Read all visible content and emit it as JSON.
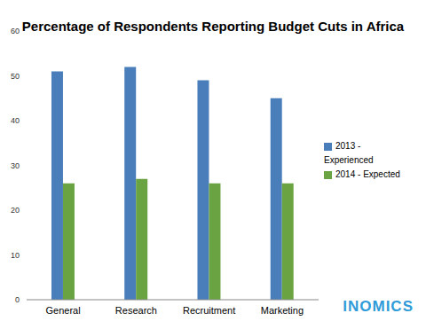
{
  "chart_data": {
    "type": "bar",
    "title": "Percentage of Respondents Reporting Budget Cuts in Africa",
    "categories": [
      "General",
      "Research",
      "Recruitment",
      "Marketing"
    ],
    "series": [
      {
        "name": "2013 - Experienced",
        "color": "#4a7ebb",
        "values": [
          51,
          52,
          49,
          45
        ]
      },
      {
        "name": "2014 - Expected",
        "color": "#6aa342",
        "values": [
          26,
          27,
          26,
          26
        ]
      }
    ],
    "ylim": [
      0,
      60
    ],
    "yticks": [
      0,
      10,
      20,
      30,
      40,
      50,
      60
    ],
    "grid": false,
    "legend": "right",
    "annotations": [
      "INOMICS"
    ]
  }
}
